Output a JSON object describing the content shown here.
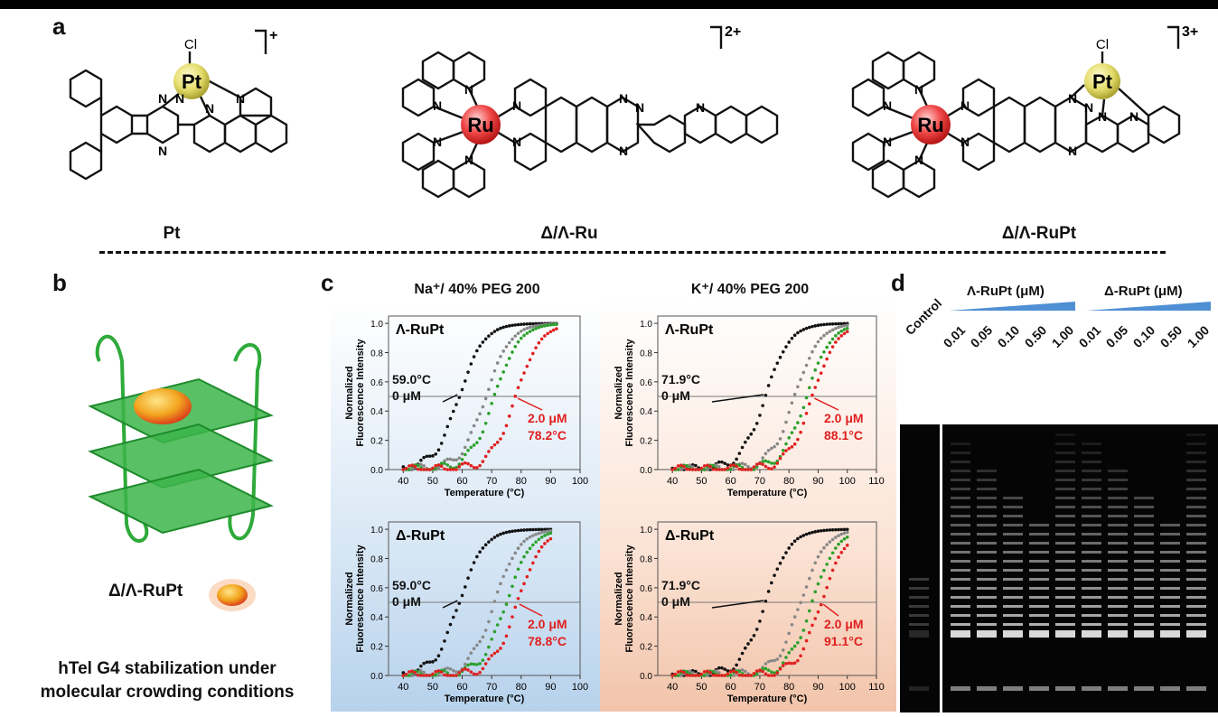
{
  "panels": {
    "a": "a",
    "b": "b",
    "c": "c",
    "d": "d"
  },
  "compounds": {
    "pt": {
      "name": "Pt",
      "charge": "+",
      "metal": "Pt",
      "ligand_atom": "Cl"
    },
    "ru": {
      "name": "Δ/Λ-Ru",
      "charge": "2+",
      "metal": "Ru"
    },
    "rupt": {
      "name": "Δ/Λ-RuPt",
      "charge": "3+",
      "metal_ru": "Ru",
      "metal_pt": "Pt",
      "ligand_atom": "Cl"
    }
  },
  "atom_n": "N",
  "panel_b": {
    "legend_label": "Δ/Λ-RuPt",
    "caption_line1": "hTel G4 stabilization under",
    "caption_line2": "molecular crowding conditions"
  },
  "panel_c": {
    "col1_title": "Na⁺/ 40% PEG 200",
    "col2_title": "K⁺/ 40% PEG 200",
    "ylabel_line1": "Normalized",
    "ylabel_line2": "Fluorescence Intensity",
    "xlabel": "Temperature (°C)",
    "colors": {
      "black": "#111111",
      "gray": "#888888",
      "green": "#2ca02c",
      "red": "#e02020"
    }
  },
  "chart_data": [
    {
      "type": "scatter",
      "title": "Λ-RuPt",
      "xlabel": "Temperature (°C)",
      "ylabel": "Normalized Fluorescence Intensity",
      "xlim": [
        35,
        100
      ],
      "ylim": [
        0,
        1.05
      ],
      "xticks": [
        "40",
        "50",
        "60",
        "70",
        "80",
        "90",
        "100"
      ],
      "yticks": [
        "0.0",
        "0.2",
        "0.4",
        "0.6",
        "0.8",
        "1.0"
      ],
      "grid": false,
      "series": [
        {
          "color": "#111111",
          "tm": 59.0,
          "xmin": 40,
          "xmax": 92
        },
        {
          "color": "#888888",
          "tm": 68.0,
          "xmin": 40,
          "xmax": 92
        },
        {
          "color": "#2ca02c",
          "tm": 71.0,
          "xmin": 40,
          "xmax": 92
        },
        {
          "color": "#e02020",
          "tm": 78.2,
          "xmin": 40,
          "xmax": 92
        }
      ],
      "annotations": [
        {
          "text1": "59.0°C",
          "text2": "0 μM",
          "color": "#111111"
        },
        {
          "text1": "2.0 μM",
          "text2": "78.2°C",
          "color": "#e02020"
        }
      ]
    },
    {
      "type": "scatter",
      "title": "Λ-RuPt",
      "xlabel": "Temperature (°C)",
      "ylabel": "Normalized Fluorescence Intensity",
      "xlim": [
        35,
        110
      ],
      "ylim": [
        0,
        1.05
      ],
      "xticks": [
        "40",
        "50",
        "60",
        "70",
        "80",
        "90",
        "100",
        "110"
      ],
      "yticks": [
        "0.0",
        "0.2",
        "0.4",
        "0.6",
        "0.8",
        "1.0"
      ],
      "grid": false,
      "series": [
        {
          "color": "#111111",
          "tm": 71.9,
          "xmin": 40,
          "xmax": 100
        },
        {
          "color": "#888888",
          "tm": 82.0,
          "xmin": 40,
          "xmax": 100
        },
        {
          "color": "#2ca02c",
          "tm": 86.0,
          "xmin": 40,
          "xmax": 100
        },
        {
          "color": "#e02020",
          "tm": 88.1,
          "xmin": 40,
          "xmax": 100
        }
      ],
      "annotations": [
        {
          "text1": "71.9°C",
          "text2": "0 μM",
          "color": "#111111"
        },
        {
          "text1": "2.0 μM",
          "text2": "88.1°C",
          "color": "#e02020"
        }
      ]
    },
    {
      "type": "scatter",
      "title": "Δ-RuPt",
      "xlabel": "Temperature (°C)",
      "ylabel": "Normalized Fluorescence Intensity",
      "xlim": [
        35,
        100
      ],
      "ylim": [
        0,
        1.05
      ],
      "xticks": [
        "40",
        "50",
        "60",
        "70",
        "80",
        "90",
        "100"
      ],
      "yticks": [
        "0.0",
        "0.2",
        "0.4",
        "0.6",
        "0.8",
        "1.0"
      ],
      "grid": false,
      "series": [
        {
          "color": "#111111",
          "tm": 59.0,
          "xmin": 40,
          "xmax": 90
        },
        {
          "color": "#888888",
          "tm": 71.0,
          "xmin": 40,
          "xmax": 90
        },
        {
          "color": "#2ca02c",
          "tm": 75.0,
          "xmin": 40,
          "xmax": 90
        },
        {
          "color": "#e02020",
          "tm": 78.8,
          "xmin": 40,
          "xmax": 90
        }
      ],
      "annotations": [
        {
          "text1": "59.0°C",
          "text2": "0 μM",
          "color": "#111111"
        },
        {
          "text1": "2.0 μM",
          "text2": "78.8°C",
          "color": "#e02020"
        }
      ]
    },
    {
      "type": "scatter",
      "title": "Δ-RuPt",
      "xlabel": "Temperature (°C)",
      "ylabel": "Normalized Fluorescence Intensity",
      "xlim": [
        35,
        110
      ],
      "ylim": [
        0,
        1.05
      ],
      "xticks": [
        "40",
        "50",
        "60",
        "70",
        "80",
        "90",
        "100",
        "110"
      ],
      "yticks": [
        "0.0",
        "0.2",
        "0.4",
        "0.6",
        "0.8",
        "1.0"
      ],
      "grid": false,
      "series": [
        {
          "color": "#111111",
          "tm": 71.9,
          "xmin": 40,
          "xmax": 100
        },
        {
          "color": "#888888",
          "tm": 84.0,
          "xmin": 40,
          "xmax": 100
        },
        {
          "color": "#2ca02c",
          "tm": 88.0,
          "xmin": 40,
          "xmax": 100
        },
        {
          "color": "#e02020",
          "tm": 91.1,
          "xmin": 40,
          "xmax": 100
        }
      ],
      "annotations": [
        {
          "text1": "71.9°C",
          "text2": "0 μM",
          "color": "#111111"
        },
        {
          "text1": "2.0 μM",
          "text2": "91.1°C",
          "color": "#e02020"
        }
      ]
    }
  ],
  "panel_d": {
    "control_label": "Control",
    "group1_label": "Λ-RuPt (μM)",
    "group2_label": "Δ-RuPt (μM)",
    "concentrations": [
      "0.01",
      "0.05",
      "0.10",
      "0.50",
      "1.00"
    ],
    "concentrations2": [
      "0.01",
      "0.05",
      "0.10",
      "0.50",
      "1.00"
    ]
  }
}
